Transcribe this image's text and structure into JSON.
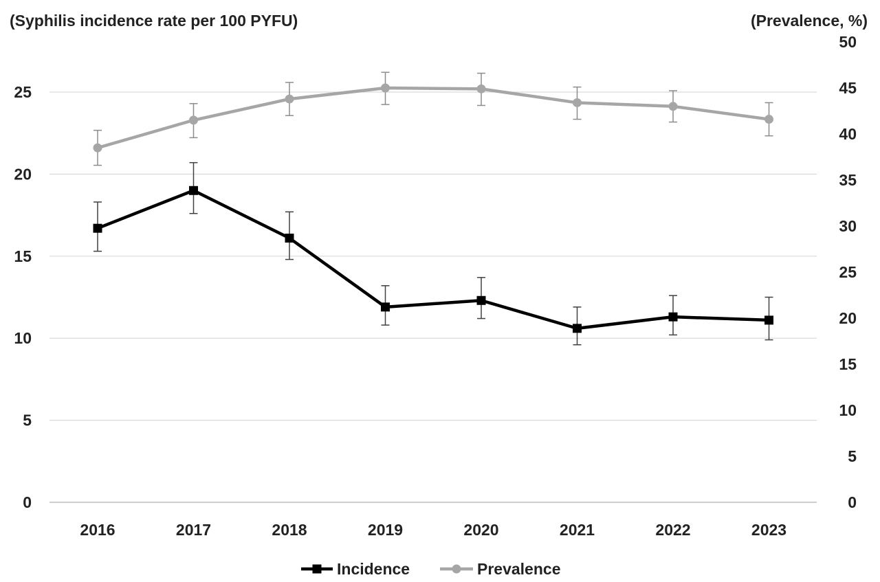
{
  "chart_data": {
    "type": "line",
    "title": "",
    "ylabel_left": "(Syphilis incidence rate per 100 PYFU)",
    "ylabel_right": "(Prevalence, %)",
    "xlabel": "",
    "categories": [
      "2016",
      "2017",
      "2018",
      "2019",
      "2020",
      "2021",
      "2022",
      "2023"
    ],
    "y_left": {
      "min": 0,
      "max": 25,
      "ticks": [
        0,
        5,
        10,
        15,
        20,
        25
      ]
    },
    "y_right": {
      "min": 0,
      "max": 50,
      "ticks": [
        0,
        5,
        10,
        15,
        20,
        25,
        30,
        35,
        40,
        45,
        50
      ]
    },
    "grid": true,
    "legend_position": "bottom",
    "series": [
      {
        "name": "Incidence",
        "axis": "left",
        "color": "#000000",
        "marker": "square",
        "values": [
          16.7,
          19.0,
          16.1,
          11.9,
          12.3,
          10.6,
          11.3,
          11.1
        ],
        "err_low": [
          15.3,
          17.6,
          14.8,
          10.8,
          11.2,
          9.6,
          10.2,
          9.9
        ],
        "err_high": [
          18.3,
          20.7,
          17.7,
          13.2,
          13.7,
          11.9,
          12.6,
          12.5
        ]
      },
      {
        "name": "Prevalence",
        "axis": "right",
        "color": "#a6a6a6",
        "marker": "circle",
        "values": [
          38.5,
          41.5,
          43.8,
          45.0,
          44.9,
          43.4,
          43.0,
          41.6
        ],
        "err_low": [
          36.6,
          39.6,
          42.0,
          43.2,
          43.1,
          41.6,
          41.3,
          39.8
        ],
        "err_high": [
          40.4,
          43.3,
          45.6,
          46.7,
          46.6,
          45.1,
          44.7,
          43.4
        ]
      }
    ]
  }
}
